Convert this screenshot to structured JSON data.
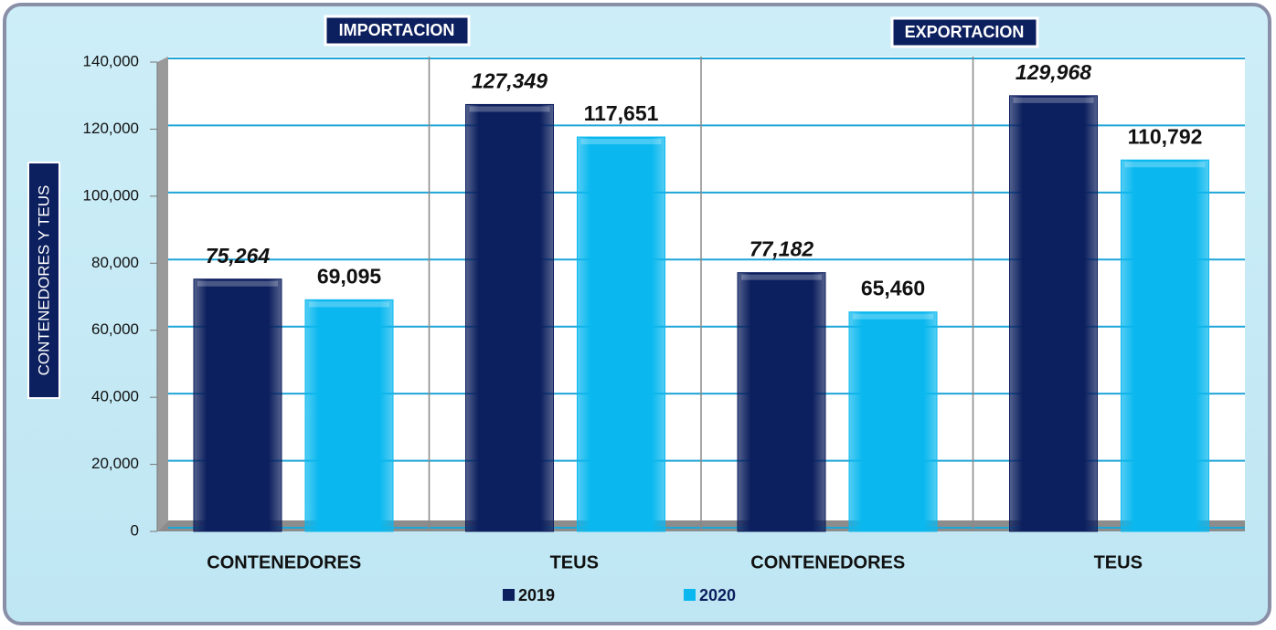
{
  "chart_data": {
    "type": "bar",
    "group_labels": [
      "IMPORTACION",
      "EXPORTACION"
    ],
    "ylabel": "CONTENEDORES Y TEUS",
    "categories": [
      "CONTENEDORES",
      "TEUS",
      "CONTENEDORES",
      "TEUS"
    ],
    "series": [
      {
        "name": "2019",
        "color": "#0c1f5e",
        "values": [
          75264,
          127349,
          77182,
          129968
        ],
        "value_labels": [
          "75,264",
          "127,349",
          "77,182",
          "129,968"
        ]
      },
      {
        "name": "2020",
        "color": "#0ab8ef",
        "values": [
          69095,
          117651,
          65460,
          110792
        ],
        "value_labels": [
          "69,095",
          "117,651",
          "65,460",
          "110,792"
        ]
      }
    ],
    "ylim": [
      0,
      140000
    ],
    "yticks": [
      0,
      {
        "value": 20000,
        "label": "20,000"
      },
      {
        "value": 40000,
        "label": "40,000"
      },
      {
        "value": 60000,
        "label": "60,000"
      },
      {
        "value": 80000,
        "label": "80,000"
      },
      {
        "value": 100000,
        "label": "100,000"
      },
      {
        "value": 120000,
        "label": "120,000"
      },
      {
        "value": 140000,
        "label": "140,000"
      }
    ],
    "grid": true,
    "legend": "bottom"
  }
}
